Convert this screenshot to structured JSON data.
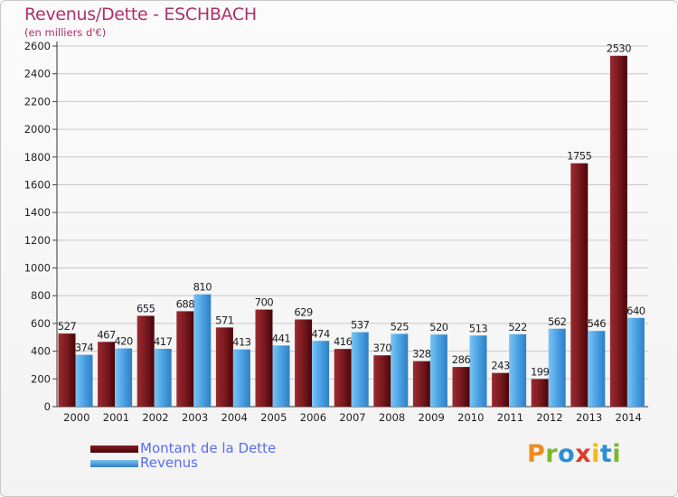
{
  "title": "Revenus/Dette - ESCHBACH",
  "subtitle": "(en milliers d'€)",
  "logo": {
    "letters": [
      "P",
      "r",
      "o",
      "x",
      "i",
      "t",
      "i"
    ],
    "colors": [
      "#f08a1e",
      "#7ab828",
      "#2c8fd6",
      "#e03a2a",
      "#f5b914",
      "#2c8fd6",
      "#7ab828"
    ]
  },
  "colors": {
    "dette": "#6b0f14",
    "dette_light": "#a04040",
    "revenus": "#3a90d8",
    "revenus_light": "#6fbaf0",
    "axis_text": "#222222",
    "grid": "#c8c8c8"
  },
  "chart_data": {
    "type": "bar",
    "title": "Revenus/Dette - ESCHBACH",
    "ylabel": "(en milliers d'€)",
    "xlabel": "",
    "ylim": [
      0,
      2600
    ],
    "yticks": [
      0,
      200,
      400,
      600,
      800,
      1000,
      1200,
      1400,
      1600,
      1800,
      2000,
      2200,
      2400,
      2600
    ],
    "grid": true,
    "categories": [
      "2000",
      "2001",
      "2002",
      "2003",
      "2004",
      "2005",
      "2006",
      "2007",
      "2008",
      "2009",
      "2010",
      "2011",
      "2012",
      "2013",
      "2014"
    ],
    "series": [
      {
        "name": "Montant de la Dette",
        "values": [
          527,
          467,
          655,
          688,
          571,
          700,
          629,
          416,
          370,
          328,
          286,
          243,
          199,
          1755,
          2530
        ]
      },
      {
        "name": "Revenus",
        "values": [
          374,
          420,
          417,
          810,
          413,
          441,
          474,
          537,
          525,
          520,
          513,
          522,
          562,
          546,
          640
        ]
      }
    ],
    "legend": "bottom-left"
  }
}
